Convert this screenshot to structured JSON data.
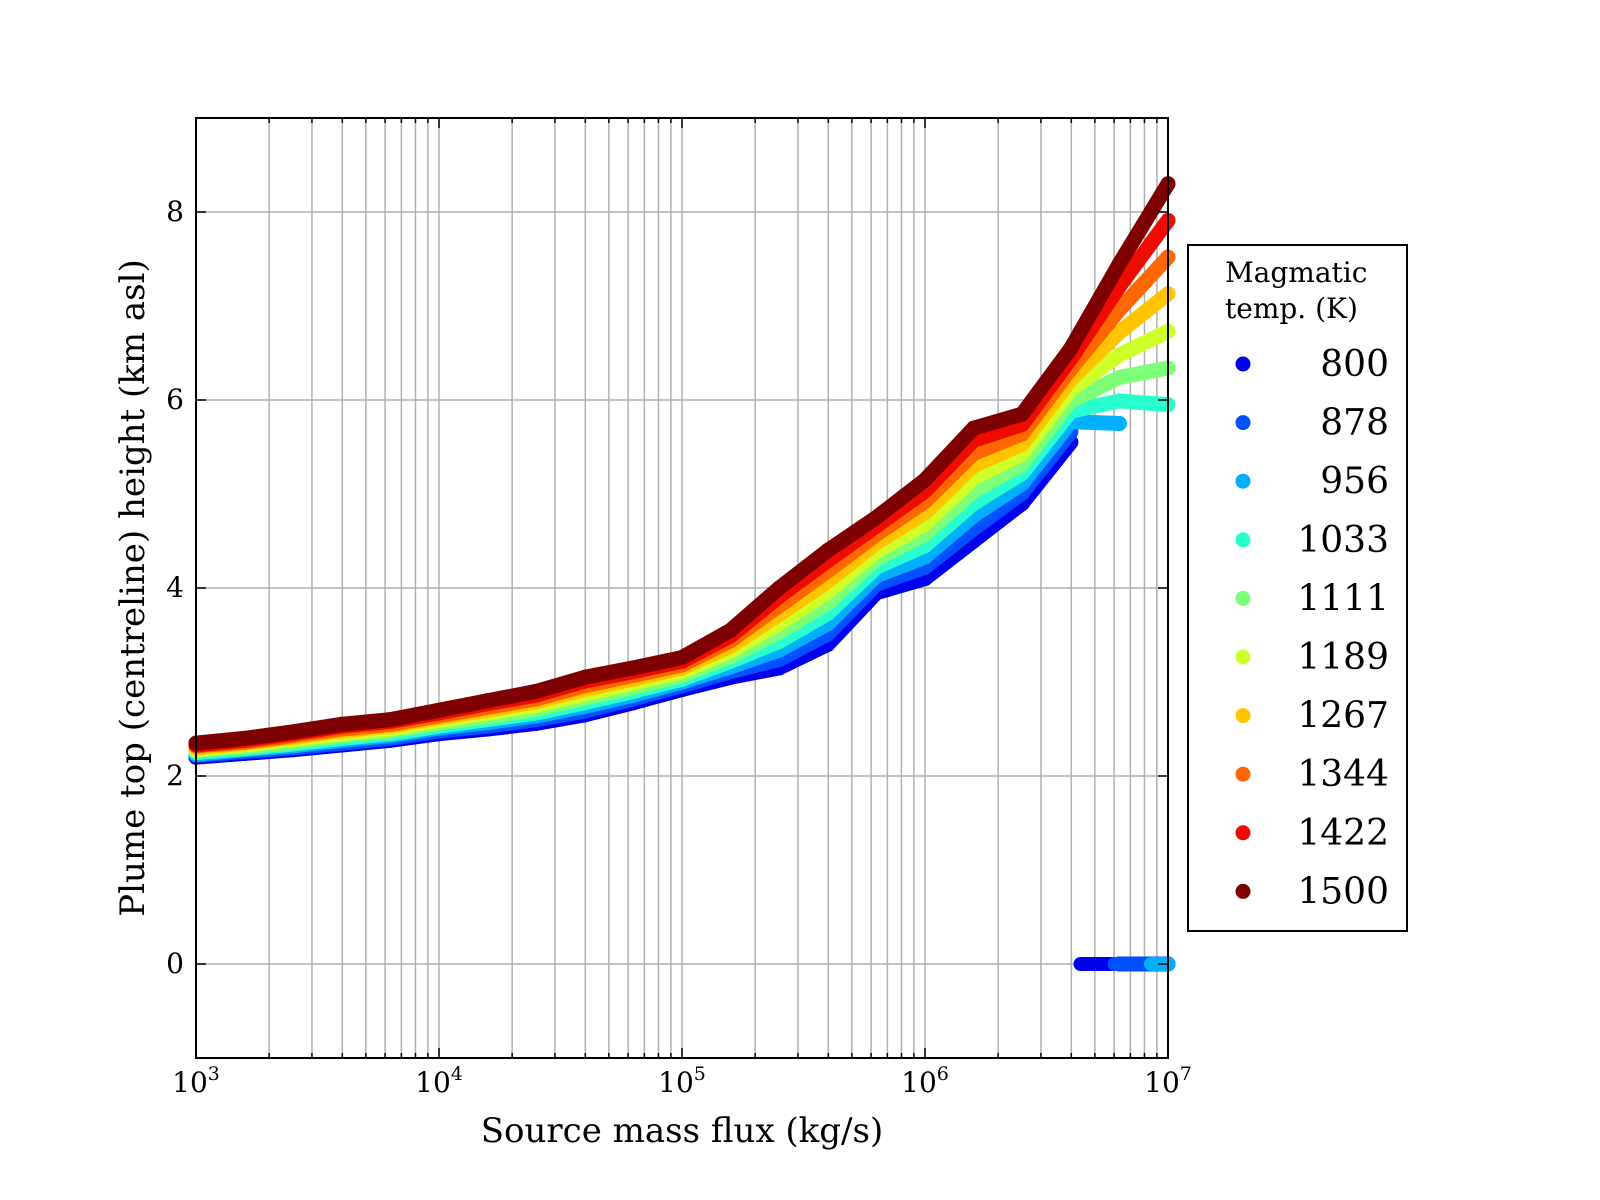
{
  "chart_data": {
    "type": "scatter",
    "title": "",
    "xlabel": "Source mass flux (kg/s)",
    "ylabel": "Plume top (centreline) height (km asl)",
    "xscale": "log",
    "xlim": [
      1000,
      10000000
    ],
    "ylim": [
      -1,
      9
    ],
    "grid": true,
    "xticks": [
      {
        "base": "10",
        "exp": "3",
        "value": 1000
      },
      {
        "base": "10",
        "exp": "4",
        "value": 10000
      },
      {
        "base": "10",
        "exp": "5",
        "value": 100000
      },
      {
        "base": "10",
        "exp": "6",
        "value": 1000000
      },
      {
        "base": "10",
        "exp": "7",
        "value": 10000000
      }
    ],
    "yticks": [
      "0",
      "2",
      "4",
      "6",
      "8"
    ],
    "legend": {
      "title_line1": "Magmatic",
      "title_line2": "temp. (K)",
      "placement": "right-outside"
    },
    "log10_x": [
      3.0,
      3.2,
      3.4,
      3.6,
      3.8,
      4.0,
      4.2,
      4.4,
      4.6,
      4.8,
      5.0,
      5.2,
      5.4,
      5.6,
      5.8,
      6.0,
      6.2,
      6.4,
      6.6,
      6.8,
      7.0
    ],
    "series": [
      {
        "name": "800",
        "color": "#0000ea",
        "values": [
          2.2,
          2.24,
          2.28,
          2.33,
          2.38,
          2.45,
          2.5,
          2.56,
          2.65,
          2.78,
          2.92,
          3.05,
          3.15,
          3.4,
          3.95,
          4.1,
          4.5,
          4.9,
          5.55,
          0,
          0
        ]
      },
      {
        "name": "878",
        "color": "#0050ff",
        "values": [
          2.22,
          2.26,
          2.3,
          2.35,
          2.4,
          2.48,
          2.53,
          2.6,
          2.69,
          2.82,
          2.96,
          3.11,
          3.24,
          3.51,
          4.04,
          4.22,
          4.63,
          5.01,
          5.66,
          0,
          0
        ]
      },
      {
        "name": "956",
        "color": "#00b0ff",
        "values": [
          2.23,
          2.28,
          2.32,
          2.38,
          2.43,
          2.51,
          2.57,
          2.64,
          2.74,
          2.86,
          3.0,
          3.16,
          3.34,
          3.62,
          4.13,
          4.33,
          4.77,
          5.11,
          5.77,
          5.75,
          0
        ]
      },
      {
        "name": "1033",
        "color": "#29ffce",
        "values": [
          2.25,
          2.29,
          2.34,
          2.4,
          2.45,
          2.53,
          2.6,
          2.67,
          2.78,
          2.9,
          3.03,
          3.22,
          3.43,
          3.73,
          4.22,
          4.45,
          4.9,
          5.22,
          5.88,
          5.99,
          5.95
        ]
      },
      {
        "name": "1111",
        "color": "#7dff7a",
        "values": [
          2.27,
          2.31,
          2.36,
          2.43,
          2.48,
          2.56,
          2.63,
          2.71,
          2.83,
          2.94,
          3.07,
          3.27,
          3.53,
          3.84,
          4.31,
          4.57,
          5.03,
          5.32,
          5.99,
          6.24,
          6.34
        ]
      },
      {
        "name": "1189",
        "color": "#ceff29",
        "values": [
          2.28,
          2.33,
          2.39,
          2.45,
          2.5,
          2.59,
          2.67,
          2.75,
          2.87,
          2.99,
          3.11,
          3.33,
          3.62,
          3.96,
          4.39,
          4.68,
          5.17,
          5.43,
          6.11,
          6.48,
          6.73
        ]
      },
      {
        "name": "1267",
        "color": "#ffc400",
        "values": [
          2.3,
          2.35,
          2.41,
          2.48,
          2.53,
          2.62,
          2.7,
          2.79,
          2.92,
          3.03,
          3.15,
          3.38,
          3.72,
          4.07,
          4.48,
          4.8,
          5.3,
          5.53,
          6.22,
          6.72,
          7.13
        ]
      },
      {
        "name": "1344",
        "color": "#ff6800",
        "values": [
          2.32,
          2.36,
          2.43,
          2.5,
          2.55,
          2.64,
          2.73,
          2.82,
          2.96,
          3.07,
          3.18,
          3.44,
          3.81,
          4.18,
          4.57,
          4.92,
          5.43,
          5.64,
          6.33,
          6.96,
          7.52
        ]
      },
      {
        "name": "1422",
        "color": "#ee0c00",
        "values": [
          2.33,
          2.38,
          2.45,
          2.53,
          2.58,
          2.67,
          2.77,
          2.86,
          3.01,
          3.11,
          3.22,
          3.49,
          3.91,
          4.29,
          4.66,
          5.03,
          5.57,
          5.74,
          6.44,
          7.21,
          7.91
        ]
      },
      {
        "name": "1500",
        "color": "#7f0000",
        "values": [
          2.35,
          2.4,
          2.47,
          2.55,
          2.6,
          2.7,
          2.8,
          2.9,
          3.05,
          3.15,
          3.26,
          3.55,
          4.0,
          4.4,
          4.75,
          5.15,
          5.7,
          5.85,
          6.55,
          7.45,
          8.3
        ]
      }
    ]
  }
}
